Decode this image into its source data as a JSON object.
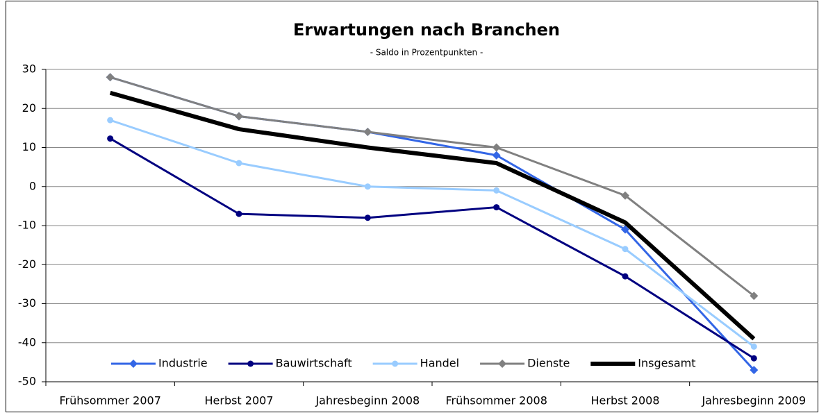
{
  "chart_data": {
    "type": "line",
    "title": "Erwartungen nach Branchen",
    "subtitle": "- Saldo in Prozentpunkten -",
    "categories": [
      "Frühsommer 2007",
      "Herbst 2007",
      "Jahresbeginn 2008",
      "Frühsommer 2008",
      "Herbst 2008",
      "Jahresbeginn 2009"
    ],
    "series": [
      {
        "name": "Industrie",
        "color": "#3366e6",
        "marker": "diamond",
        "width": 3,
        "values": [
          28,
          18,
          14,
          8,
          -11,
          -47
        ]
      },
      {
        "name": "Bauwirtschaft",
        "color": "#000080",
        "marker": "circle",
        "width": 3,
        "values": [
          12.3,
          -7,
          -8,
          -5.3,
          -23,
          -44
        ]
      },
      {
        "name": "Handel",
        "color": "#99ccff",
        "marker": "circle",
        "width": 3,
        "values": [
          17,
          6,
          0,
          -1,
          -16,
          -41
        ]
      },
      {
        "name": "Dienste",
        "color": "#808080",
        "marker": "diamond",
        "width": 3,
        "values": [
          28,
          18,
          14,
          10,
          -2.3,
          -28
        ]
      },
      {
        "name": "Insgesamt",
        "color": "#000000",
        "marker": null,
        "width": 6,
        "values": [
          24,
          14.7,
          10,
          6,
          -9.2,
          -39
        ]
      }
    ],
    "ylim": [
      -50,
      30
    ],
    "yticks": [
      -50,
      -40,
      -30,
      -20,
      -10,
      0,
      10,
      20,
      30
    ],
    "grid": true,
    "legend": "bottom"
  }
}
